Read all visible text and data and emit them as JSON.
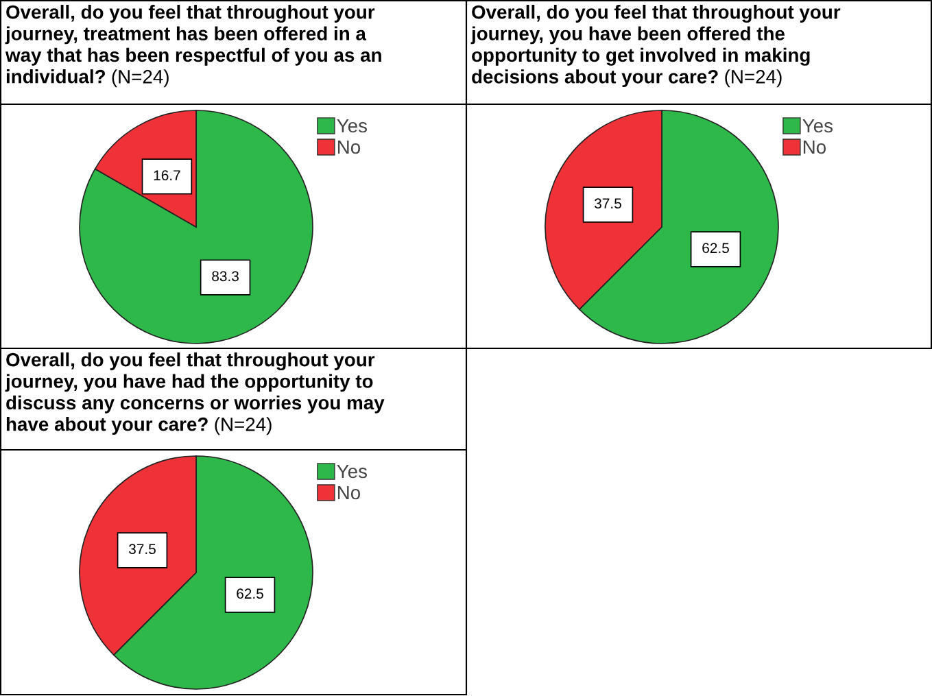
{
  "chart_data": [
    {
      "type": "pie",
      "title": "Overall, do you feel that throughout your\njourney, treatment has been offered in a\nway that has been respectful of you as an\nindividual?",
      "subtitle": "(N=24)",
      "categories": [
        "Yes",
        "No"
      ],
      "values": [
        83.3,
        16.7
      ],
      "colors": [
        "#2fb84a",
        "#ee3238"
      ],
      "data_labels": true,
      "legend": "top right"
    },
    {
      "type": "pie",
      "title": "Overall, do you feel that throughout your\njourney, you have been offered the\nopportunity to get involved in making\ndecisions about your care?",
      "subtitle": "(N=24)",
      "categories": [
        "Yes",
        "No"
      ],
      "values": [
        62.5,
        37.5
      ],
      "colors": [
        "#2fb84a",
        "#ee3238"
      ],
      "data_labels": true,
      "legend": "top right"
    },
    {
      "type": "pie",
      "title": "Overall, do you feel that throughout your\njourney, you have had the opportunity to\ndiscuss any concerns or worries you may\nhave about your care?",
      "subtitle": "(N=24)",
      "categories": [
        "Yes",
        "No"
      ],
      "values": [
        62.5,
        37.5
      ],
      "colors": [
        "#2fb84a",
        "#ee3238"
      ],
      "data_labels": true,
      "legend": "top right"
    }
  ]
}
